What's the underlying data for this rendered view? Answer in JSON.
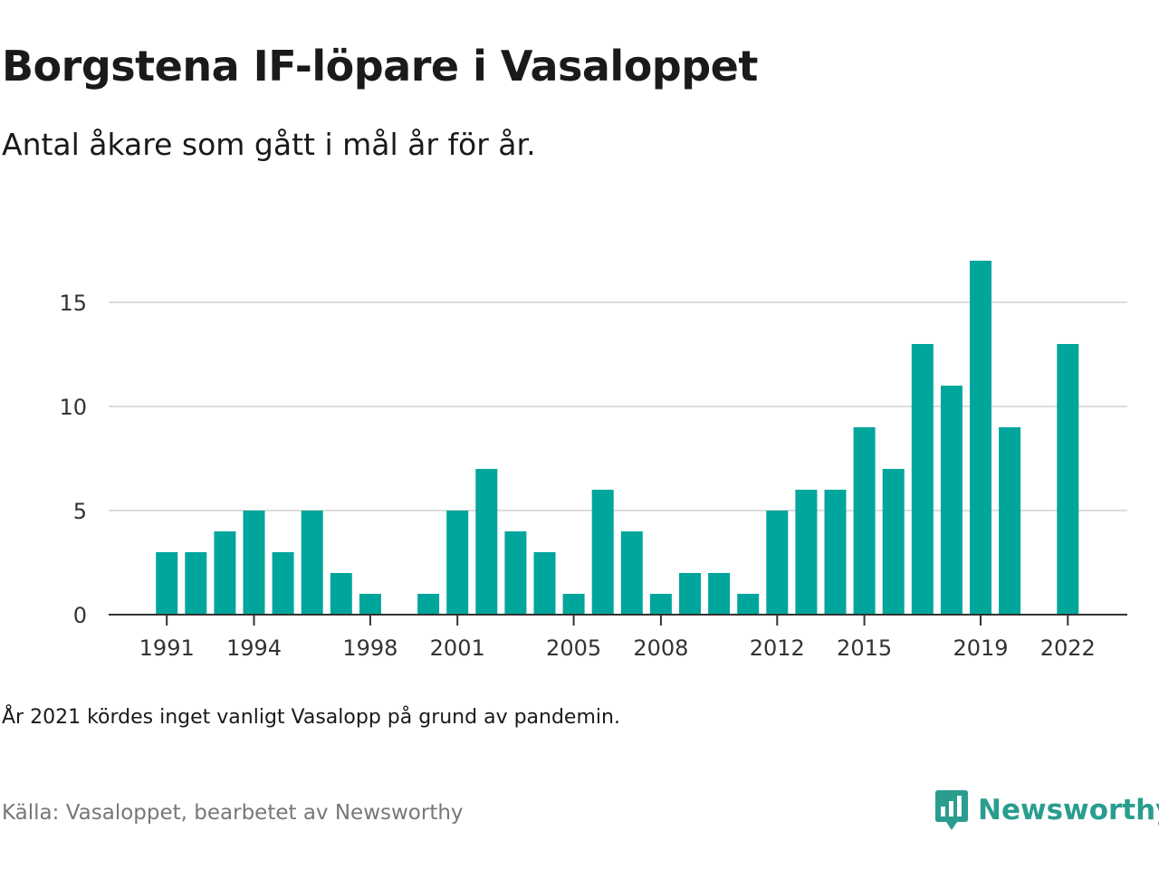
{
  "title": "Borgstena IF-löpare i Vasaloppet",
  "subtitle": "Antal åkare som gått i mål år för år.",
  "note": "År 2021 kördes inget vanligt Vasalopp på grund av pandemin.",
  "source": "Källa: Vasaloppet, bearbetet av Newsworthy",
  "logo": {
    "text": "Newsworthy",
    "icon": "newsworthy-logo-icon"
  },
  "colors": {
    "bar": "#00a69c",
    "grid": "#dddddd",
    "axis": "#333333",
    "brand": "#2a9d8f"
  },
  "chart_data": {
    "type": "bar",
    "title": "Borgstena IF-löpare i Vasaloppet",
    "subtitle": "Antal åkare som gått i mål år för år.",
    "xlabel": "",
    "ylabel": "",
    "categories": [
      1991,
      1992,
      1993,
      1994,
      1995,
      1996,
      1997,
      1998,
      1999,
      2000,
      2001,
      2002,
      2003,
      2004,
      2005,
      2006,
      2007,
      2008,
      2009,
      2010,
      2011,
      2012,
      2013,
      2014,
      2015,
      2016,
      2017,
      2018,
      2019,
      2020,
      2021,
      2022
    ],
    "values": [
      3,
      3,
      4,
      5,
      3,
      5,
      2,
      1,
      0,
      1,
      5,
      7,
      4,
      3,
      1,
      6,
      4,
      1,
      2,
      2,
      1,
      5,
      6,
      6,
      9,
      7,
      13,
      11,
      17,
      9,
      0,
      13
    ],
    "x_tick_labels": [
      "1991",
      "1994",
      "1998",
      "2001",
      "2005",
      "2008",
      "2012",
      "2015",
      "2019",
      "2022"
    ],
    "y_ticks": [
      0,
      5,
      10,
      15
    ],
    "ylim": [
      0,
      17
    ],
    "grid": "horizontal",
    "legend": "none"
  }
}
